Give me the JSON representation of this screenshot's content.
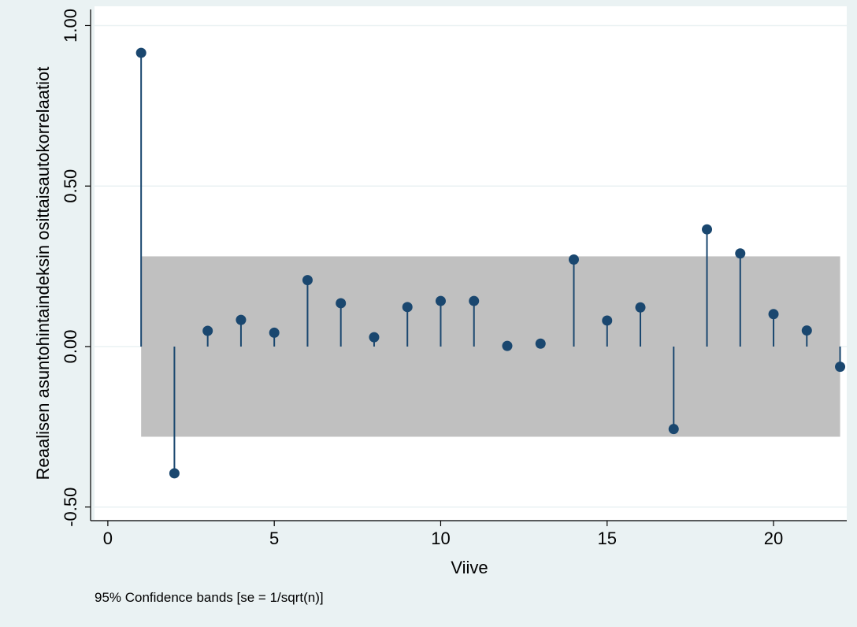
{
  "colors": {
    "outer_background": "#eaf2f3",
    "plot_background": "#ffffff",
    "grid": "#eaf2f3",
    "confidence_band": "#c0c0c0",
    "series": "#1a476f",
    "axis": "#000000"
  },
  "chart_data": {
    "type": "stem",
    "xlabel": "Viive",
    "ylabel": "Reaalisen asuntohintaindeksin osittaisautokorrelaatiot",
    "note": "95% Confidence bands [se = 1/sqrt(n)]",
    "xlim": [
      -0.4,
      22.2
    ],
    "ylim": [
      -0.54,
      1.06
    ],
    "x_ticks": [
      0,
      5,
      10,
      15,
      20
    ],
    "x_tick_labels": [
      "0",
      "5",
      "10",
      "15",
      "20"
    ],
    "y_ticks": [
      -0.5,
      0,
      0.5,
      1
    ],
    "y_tick_labels": [
      "-0.50",
      "0.00",
      "0.50",
      "1.00"
    ],
    "grid": true,
    "lags": [
      1,
      2,
      3,
      4,
      5,
      6,
      7,
      8,
      9,
      10,
      11,
      12,
      13,
      14,
      15,
      16,
      17,
      18,
      19,
      20,
      21,
      22
    ],
    "values": [
      0.915,
      -0.395,
      0.049,
      0.083,
      0.043,
      0.207,
      0.135,
      0.029,
      0.123,
      0.142,
      0.142,
      0.002,
      0.009,
      0.271,
      0.081,
      0.122,
      -0.257,
      0.365,
      0.29,
      0.101,
      0.05,
      -0.063
    ],
    "confidence_band": {
      "from": 1,
      "to": 22,
      "lower": -0.281,
      "upper": 0.281
    }
  }
}
